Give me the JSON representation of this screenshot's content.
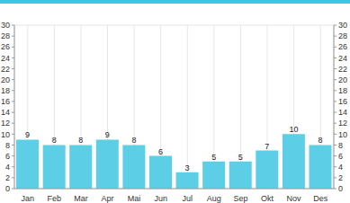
{
  "chart_data": {
    "type": "bar",
    "categories": [
      "Jan",
      "Feb",
      "Mar",
      "Apr",
      "Mai",
      "Jun",
      "Jul",
      "Aug",
      "Sep",
      "Okt",
      "Nov",
      "Des"
    ],
    "values": [
      9,
      8,
      8,
      9,
      8,
      6,
      3,
      5,
      5,
      7,
      10,
      8
    ],
    "color": "#5ccfe6",
    "ylim": [
      0,
      30
    ],
    "yticks": [
      0,
      2,
      4,
      6,
      8,
      10,
      12,
      14,
      16,
      18,
      20,
      22,
      24,
      26,
      28,
      30
    ],
    "grid": true,
    "data_labels": true
  }
}
